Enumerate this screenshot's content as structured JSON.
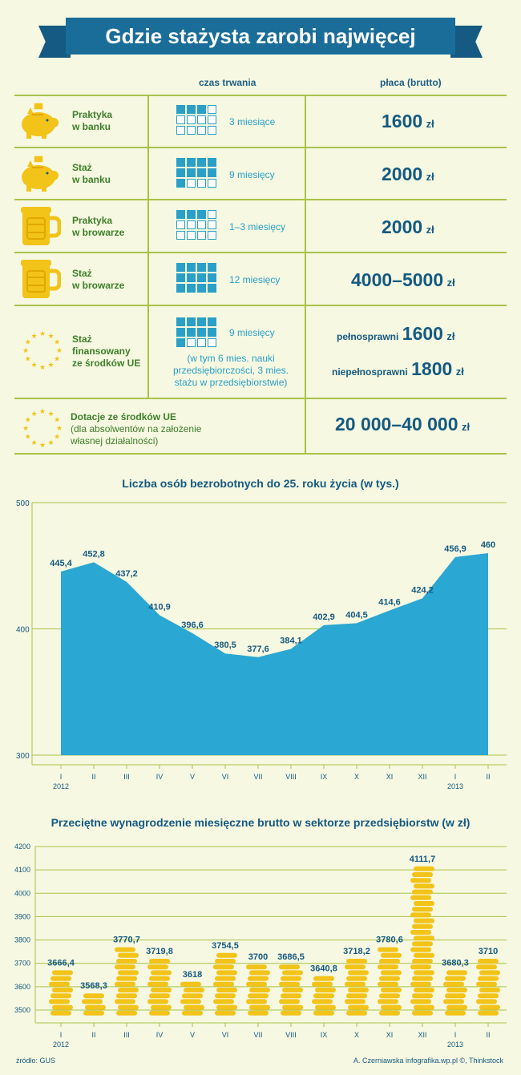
{
  "title": "Gdzie stażysta zarobi najwięcej",
  "table": {
    "col_duration": "czas trwania",
    "col_pay": "płaca (brutto)",
    "rows": [
      {
        "name1": "Praktyka",
        "name2": "w banku",
        "icon": "piggy-bank-icon",
        "duration": "3 miesiące",
        "months_filled": 3,
        "pay": "1600",
        "unit": "zł"
      },
      {
        "name1": "Staż",
        "name2": "w banku",
        "icon": "piggy-bank-icon",
        "duration": "9 miesięcy",
        "months_filled": 9,
        "pay": "2000",
        "unit": "zł"
      },
      {
        "name1": "Praktyka",
        "name2": "w browarze",
        "icon": "beer-mug-icon",
        "duration": "1–3 miesięcy",
        "months_filled": 3,
        "pay": "2000",
        "unit": "zł"
      },
      {
        "name1": "Staż",
        "name2": "w browarze",
        "icon": "beer-mug-icon",
        "duration": "12 miesięcy",
        "months_filled": 12,
        "pay": "4000–5000",
        "unit": "zł"
      }
    ],
    "eu_row": {
      "name1": "Staż",
      "name2": "finansowany",
      "name3": "ze środków UE",
      "duration": "9 miesięcy",
      "months_filled": 9,
      "note1": "(w tym 6 mies. nauki",
      "note2": "przedsiębiorczości, 3 mies.",
      "note3": "stażu w przedsiębiorstwie)",
      "pay1_label": "pełnosprawni",
      "pay1": "1600",
      "pay2_label": "niepełnosprawni",
      "pay2": "1800",
      "unit": "zł"
    },
    "grant_row": {
      "name1": "Dotacje ze środków UE",
      "note1": "(dla absolwentów na założenie",
      "note2": "własnej działalności)",
      "pay": "20 000–40 000",
      "unit": "zł"
    }
  },
  "colors": {
    "green_line": "#a9c24a",
    "blue": "#2aa0c8",
    "navy": "#155a82",
    "gold": "#f2c318",
    "gold_dark": "#e0a800",
    "bg": "#f6f8e1"
  },
  "chart_data": [
    {
      "type": "area",
      "title": "Liczba osób bezrobotnych do 25. roku życia (w tys.)",
      "categories": [
        "I",
        "II",
        "III",
        "IV",
        "V",
        "VI",
        "VII",
        "VIII",
        "IX",
        "X",
        "XI",
        "XII",
        "I",
        "II"
      ],
      "years": [
        {
          "label": "2012",
          "index": 0
        },
        {
          "label": "2013",
          "index": 12
        }
      ],
      "values": [
        445.4,
        452.8,
        437.2,
        410.9,
        396.6,
        380.5,
        377.6,
        384.1,
        402.9,
        404.5,
        414.6,
        424.2,
        456.9,
        460
      ],
      "labels": [
        "445,4",
        "452,8",
        "437,2",
        "410,9",
        "396,6",
        "380,5",
        "377,6",
        "384,1",
        "402,9",
        "404,5",
        "414,6",
        "424,2",
        "456,9",
        "460"
      ],
      "ylim": [
        300,
        500
      ],
      "yticks": [
        "300",
        "400",
        "500"
      ],
      "grid": true
    },
    {
      "type": "bar",
      "title": "Przeciętne wynagrodzenie miesięczne brutto w sektorze przedsiębiorstw (w zł)",
      "categories": [
        "I",
        "II",
        "III",
        "IV",
        "V",
        "VI",
        "VII",
        "VIII",
        "IX",
        "X",
        "XI",
        "XII",
        "I",
        "II"
      ],
      "years": [
        {
          "label": "2012",
          "index": 0
        },
        {
          "label": "2013",
          "index": 12
        }
      ],
      "values": [
        3666.4,
        3568.3,
        3770.7,
        3719.8,
        3618,
        3754.5,
        3700,
        3686.5,
        3640.8,
        3718.2,
        3780.6,
        4111.7,
        3680.3,
        3710
      ],
      "labels": [
        "3666,4",
        "3568,3",
        "3770,7",
        "3719,8",
        "3618",
        "3754,5",
        "3700",
        "3686,5",
        "3640,8",
        "3718,2",
        "3780,6",
        "4111,7",
        "3680,3",
        "3710"
      ],
      "ylim": [
        3500,
        4200
      ],
      "yticks": [
        "3500",
        "3600",
        "3700",
        "3800",
        "3900",
        "4000",
        "4100",
        "4200"
      ],
      "grid": true
    }
  ],
  "footer": {
    "source": "źródło: GUS",
    "credit": "A. Czerniawska infografika.wp.pl ©, Thinkstock"
  }
}
